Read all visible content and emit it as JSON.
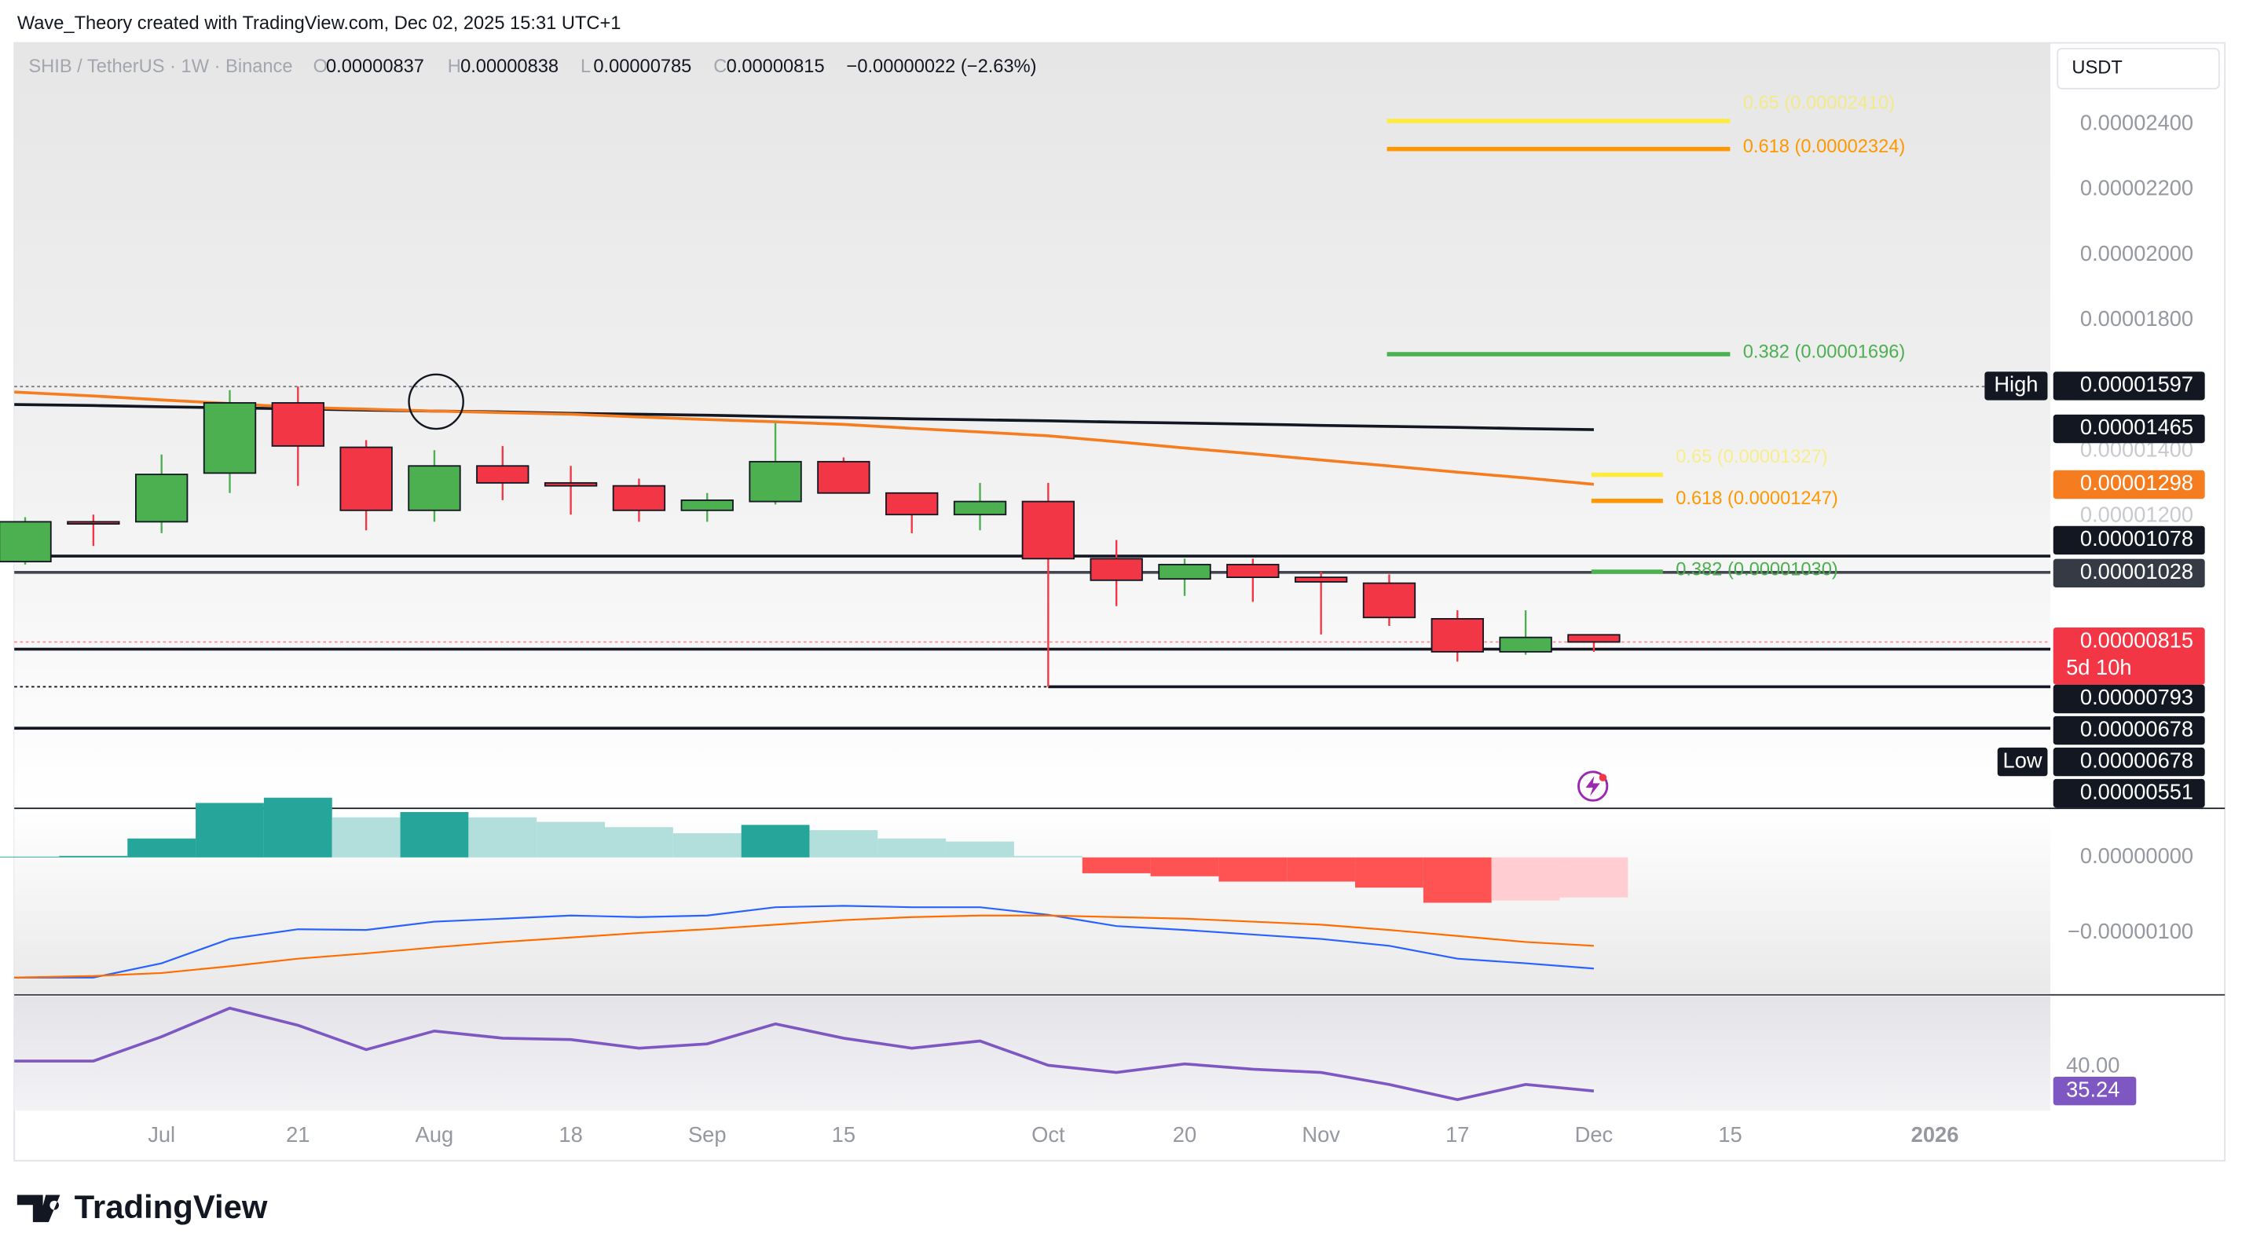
{
  "chart_data": {
    "type": "candlestick",
    "attribution": "Wave_Theory created with TradingView.com, Dec 02, 2025 15:31 UTC+1",
    "title": "SHIB / TetherUS · 1W · Binance",
    "ohlc_letters": [
      "O",
      "H",
      "L",
      "C"
    ],
    "change": "−0.00000022 (−2.63%)",
    "currency": "USDT",
    "brand": "TradingView",
    "up_color": "#4caf50",
    "down_color": "#f23645",
    "open": [
      1.061e-05,
      1.183e-05,
      1.183e-05,
      1.332e-05,
      1.547e-05,
      1.411e-05,
      1.218e-05,
      1.354e-05,
      1.302e-05,
      1.293e-05,
      1.218e-05,
      1.245e-05,
      1.367e-05,
      1.271e-05,
      1.205e-05,
      1.245e-05,
      1.07e-05,
      1.008e-05,
      1.052e-05,
      1.013e-05,
      9.95e-06,
      8.86e-06,
      7.85e-06,
      8.37e-06
    ],
    "high": [
      1.197e-05,
      1.205e-05,
      1.389e-05,
      1.586e-05,
      1.597e-05,
      1.433e-05,
      1.402e-05,
      1.415e-05,
      1.354e-05,
      1.315e-05,
      1.271e-05,
      1.485e-05,
      1.38e-05,
      1.271e-05,
      1.302e-05,
      1.302e-05,
      1.127e-05,
      1.07e-05,
      1.07e-05,
      1.03e-05,
      1.022e-05,
      9.12e-06,
      9.12e-06,
      8.38e-06
    ],
    "low": [
      1.052e-05,
      1.109e-05,
      1.148e-05,
      1.271e-05,
      1.293e-05,
      1.157e-05,
      1.183e-05,
      1.249e-05,
      1.205e-05,
      1.183e-05,
      1.183e-05,
      1.236e-05,
      1.271e-05,
      1.148e-05,
      1.157e-05,
      6.78e-06,
      9.25e-06,
      9.56e-06,
      9.38e-06,
      8.38e-06,
      8.64e-06,
      7.55e-06,
      7.76e-06,
      7.85e-06
    ],
    "close": [
      1.183e-05,
      1.178e-05,
      1.328e-05,
      1.547e-05,
      1.415e-05,
      1.218e-05,
      1.354e-05,
      1.302e-05,
      1.293e-05,
      1.218e-05,
      1.249e-05,
      1.367e-05,
      1.271e-05,
      1.205e-05,
      1.245e-05,
      1.07e-05,
      1.004e-05,
      1.052e-05,
      1.013e-05,
      9.99e-06,
      8.9e-06,
      7.85e-06,
      8.29e-06,
      8.15e-06
    ],
    "moving_averages": [
      {
        "color": "#131722",
        "values": [
          1.542e-05,
          1.539e-05,
          1.535e-05,
          1.532e-05,
          1.529e-05,
          1.525e-05,
          1.522e-05,
          1.519e-05,
          1.515e-05,
          1.512e-05,
          1.509e-05,
          1.505e-05,
          1.502e-05,
          1.498e-05,
          1.495e-05,
          1.492e-05,
          1.488e-05,
          1.485e-05,
          1.482e-05,
          1.478e-05,
          1.475e-05,
          1.472e-05,
          1.468e-05,
          1.465e-05
        ]
      },
      {
        "color": "#f57c1f",
        "values": [
          1.58e-05,
          1.568e-05,
          1.556e-05,
          1.545e-05,
          1.533e-05,
          1.528e-05,
          1.522e-05,
          1.517e-05,
          1.512e-05,
          1.504e-05,
          1.496e-05,
          1.489e-05,
          1.481e-05,
          1.469e-05,
          1.458e-05,
          1.446e-05,
          1.428e-05,
          1.409e-05,
          1.391e-05,
          1.372e-05,
          1.354e-05,
          1.335e-05,
          1.317e-05,
          1.298e-05
        ]
      }
    ],
    "ylim": [
      3.08e-06,
      2.649e-05
    ],
    "yticks": [
      {
        "value": 2.4e-05,
        "label": "0.00002400"
      },
      {
        "value": 2.2e-05,
        "label": "0.00002200"
      },
      {
        "value": 2e-05,
        "label": "0.00002000"
      },
      {
        "value": 1.8e-05,
        "label": "0.00001800"
      },
      {
        "value": 1.4e-05,
        "label": "0.00001400"
      },
      {
        "value": 1.2e-05,
        "label": "0.00001200"
      }
    ],
    "levels": [
      {
        "value": 1.597e-05,
        "color": "#787b86",
        "style": "dotted"
      },
      {
        "value": 1.078e-05,
        "color": "#131722",
        "style": "solid"
      },
      {
        "value": 1.028e-05,
        "color": "#434651",
        "style": "solid"
      },
      {
        "value": 8.15e-06,
        "color": "#f23645",
        "style": "dotted"
      },
      {
        "value": 7.93e-06,
        "color": "#131722",
        "style": "solid"
      },
      {
        "value": 6.78e-06,
        "color": "#131722",
        "style": "solid"
      },
      {
        "value": 5.51e-06,
        "color": "#131722",
        "style": "solid"
      }
    ],
    "fibs": [
      {
        "label": "0.65 (0.00002410)",
        "value": 2.41e-05,
        "color": "#ffeb3b"
      },
      {
        "label": "0.618 (0.00002324)",
        "value": 2.324e-05,
        "color": "#ff9800"
      },
      {
        "label": "0.382 (0.00001696)",
        "value": 1.696e-05,
        "color": "#4caf50"
      },
      {
        "label": "0.65 (0.00001327)",
        "value": 1.327e-05,
        "color": "#ffeb3b"
      },
      {
        "label": "0.618 (0.00001247)",
        "value": 1.247e-05,
        "color": "#ff9800"
      },
      {
        "label": "0.382 (0.00001030)",
        "value": 1.03e-05,
        "color": "#4caf50"
      }
    ],
    "price_labels": [
      {
        "value": 1.597e-05,
        "tag": "High",
        "color": "#131722"
      },
      {
        "value": 1.465e-05,
        "color": "#131722"
      },
      {
        "value": 1.298e-05,
        "color": "#f57c1f"
      },
      {
        "value": 1.078e-05,
        "color": "#131722"
      },
      {
        "value": 1.028e-05,
        "color": "#363a45"
      },
      {
        "value": 8.15e-06,
        "countdown": "5d 10h",
        "color": "#f23645"
      },
      {
        "value": 7.93e-06,
        "color": "#131722"
      },
      {
        "value": 6.78e-06,
        "color": "#131722"
      },
      {
        "value": 6.78e-06,
        "tag": "Low",
        "color": "#131722"
      },
      {
        "value": 5.51e-06,
        "color": "#131722"
      }
    ],
    "xticks": [
      {
        "value": 2,
        "label": "Jul"
      },
      {
        "value": 4,
        "label": "21"
      },
      {
        "value": 6,
        "label": "Aug"
      },
      {
        "value": 8,
        "label": "18"
      },
      {
        "value": 10,
        "label": "Sep"
      },
      {
        "value": 12,
        "label": "15"
      },
      {
        "value": 15,
        "label": "Oct"
      },
      {
        "value": 17,
        "label": "20"
      },
      {
        "value": 19,
        "label": "Nov"
      },
      {
        "value": 21,
        "label": "17"
      },
      {
        "value": 23,
        "label": "Dec"
      },
      {
        "value": 25,
        "label": "15"
      },
      {
        "value": 28,
        "label": "2026"
      }
    ],
    "macd": {
      "histogram": [
        1e-08,
        2e-08,
        2.5e-07,
        7.2e-07,
        7.9e-07,
        5.3e-07,
        6e-07,
        5.3e-07,
        4.7e-07,
        4e-07,
        3.2e-07,
        4.3e-07,
        3.6e-07,
        2.5e-07,
        2.1e-07,
        2e-08,
        -2.1e-07,
        -2.5e-07,
        -3.2e-07,
        -3.2e-07,
        -4e-07,
        -6e-07,
        -5.7e-07,
        -5.3e-07
      ],
      "hist_colors": {
        "up_rising": "#26a69a",
        "up_falling": "#b2dfdb",
        "down_falling": "#ff5252",
        "down_rising": "#ffcdd2"
      },
      "series": [
        {
          "color": "#2962ff",
          "values": [
            -1.59e-06,
            -1.59e-06,
            -1.4e-06,
            -1.08e-06,
            -9.5e-07,
            -9.6e-07,
            -8.5e-07,
            -8.1e-07,
            -7.7e-07,
            -7.9e-07,
            -7.7e-07,
            -6.6e-07,
            -6.4e-07,
            -6.6e-07,
            -6.6e-07,
            -7.6e-07,
            -9.1e-07,
            -9.6e-07,
            -1.02e-06,
            -1.08e-06,
            -1.17e-06,
            -1.34e-06,
            -1.4e-06,
            -1.47e-06
          ]
        },
        {
          "color": "#ff6d00",
          "values": [
            -1.59e-06,
            -1.57e-06,
            -1.53e-06,
            -1.44e-06,
            -1.34e-06,
            -1.27e-06,
            -1.19e-06,
            -1.12e-06,
            -1.06e-06,
            -1e-06,
            -9.5e-07,
            -8.9e-07,
            -8.3e-07,
            -7.9e-07,
            -7.7e-07,
            -7.7e-07,
            -7.9e-07,
            -8.1e-07,
            -8.5e-07,
            -8.9e-07,
            -9.6e-07,
            -1.04e-06,
            -1.12e-06,
            -1.17e-06
          ]
        }
      ],
      "ylim": [
        -1.8e-06,
        6.4e-07
      ],
      "yticks": [
        {
          "value": 0,
          "label": "0.00000000"
        },
        {
          "value": -1e-06,
          "label": "−0.00000100"
        }
      ]
    },
    "rsi": {
      "color": "#7e57c2",
      "values": [
        47.8,
        47.8,
        58.0,
        70.0,
        62.8,
        52.6,
        60.4,
        57.4,
        56.8,
        53.2,
        55.0,
        63.4,
        57.4,
        53.2,
        56.2,
        46.0,
        43.0,
        46.6,
        44.4,
        43.0,
        38.0,
        31.6,
        38.0,
        35.24
      ],
      "ylim": [
        27,
        75
      ],
      "yticks": [
        {
          "value": 40,
          "label": "40.00"
        }
      ]
    }
  }
}
